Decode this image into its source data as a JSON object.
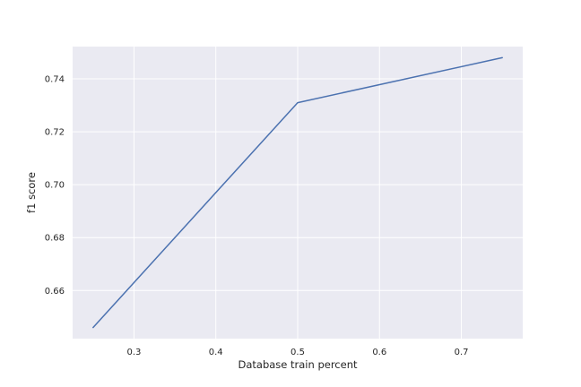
{
  "chart_data": {
    "type": "line",
    "title": "",
    "xlabel": "Database train percent",
    "ylabel": "f1 score",
    "x": [
      0.25,
      0.5,
      0.75
    ],
    "series": [
      {
        "values": [
          0.646,
          0.731,
          0.748
        ]
      }
    ],
    "xlim": [
      0.225,
      0.775
    ],
    "ylim": [
      0.6418,
      0.7522
    ],
    "xticks": [
      0.3,
      0.4,
      0.5,
      0.6,
      0.7
    ],
    "xtick_labels": [
      "0.3",
      "0.4",
      "0.5",
      "0.6",
      "0.7"
    ],
    "yticks": [
      0.66,
      0.68,
      0.7,
      0.72,
      0.74
    ],
    "ytick_labels": [
      "0.66",
      "0.68",
      "0.70",
      "0.72",
      "0.74"
    ],
    "grid": true,
    "colors": {
      "plot_background": "#eaeaf2",
      "grid": "#ffffff",
      "line": "#4c72b0"
    }
  }
}
